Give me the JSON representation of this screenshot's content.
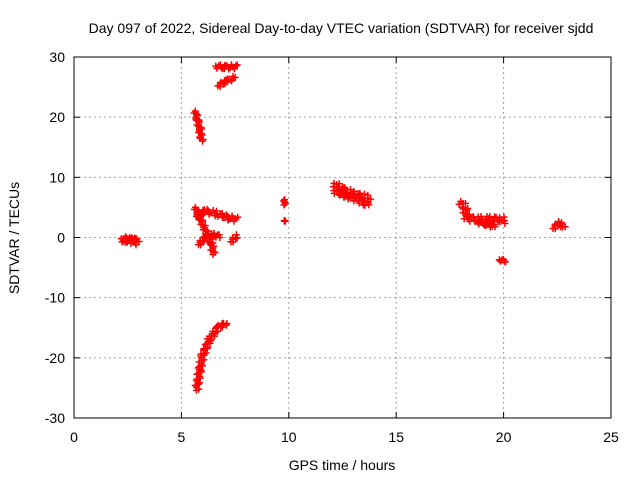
{
  "chart_data": {
    "type": "scatter",
    "title": "Day 097 of 2022, Sidereal Day-to-day VTEC variation (SDTVAR) for receiver sjdd",
    "xlabel": "GPS time / hours",
    "ylabel": "SDTVAR / TECUs",
    "xlim": [
      0,
      25
    ],
    "ylim": [
      -30,
      30
    ],
    "xticks": [
      0,
      5,
      10,
      15,
      20,
      25
    ],
    "yticks": [
      -30,
      -20,
      -10,
      0,
      10,
      20,
      30
    ],
    "grid": true,
    "marker": "plus",
    "color": "#ff0000",
    "segments": [
      {
        "points": [
          [
            2.2,
            -0.2
          ],
          [
            2.5,
            -0.4
          ],
          [
            2.8,
            -0.6
          ],
          [
            3.0,
            -0.9
          ]
        ],
        "width": 1.0
      },
      {
        "points": [
          [
            2.3,
            -0.6
          ],
          [
            2.6,
            -0.2
          ],
          [
            2.9,
            -0.5
          ]
        ],
        "width": 0.6
      },
      {
        "points": [
          [
            5.65,
            21.0
          ],
          [
            5.75,
            19.5
          ],
          [
            5.85,
            18.0
          ],
          [
            5.95,
            16.0
          ]
        ],
        "width": 0.6
      },
      {
        "points": [
          [
            5.65,
            5.0
          ],
          [
            5.9,
            3.0
          ],
          [
            6.2,
            0.5
          ],
          [
            6.4,
            -1.0
          ],
          [
            6.5,
            -2.8
          ]
        ],
        "width": 0.6
      },
      {
        "points": [
          [
            5.7,
            3.5
          ],
          [
            6.1,
            4.4
          ],
          [
            6.6,
            4.0
          ],
          [
            7.2,
            3.3
          ],
          [
            7.6,
            3.0
          ]
        ],
        "width": 0.8
      },
      {
        "points": [
          [
            5.8,
            -1.2
          ],
          [
            6.1,
            0.0
          ],
          [
            6.5,
            0.4
          ],
          [
            6.8,
            0.2
          ]
        ],
        "width": 0.6
      },
      {
        "points": [
          [
            7.3,
            -0.7
          ],
          [
            7.6,
            0.3
          ]
        ],
        "width": 0.6
      },
      {
        "points": [
          [
            5.7,
            -25.4
          ],
          [
            5.85,
            -22.0
          ],
          [
            6.0,
            -19.5
          ],
          [
            6.3,
            -17.0
          ],
          [
            6.7,
            -15.0
          ],
          [
            7.1,
            -14.2
          ]
        ],
        "width": 0.7
      },
      {
        "points": [
          [
            6.6,
            28.5
          ],
          [
            7.0,
            28.3
          ],
          [
            7.6,
            28.4
          ]
        ],
        "width": 0.7
      },
      {
        "points": [
          [
            6.7,
            25.2
          ],
          [
            7.1,
            26.0
          ],
          [
            7.5,
            26.6
          ]
        ],
        "width": 0.6
      },
      {
        "points": [
          [
            9.8,
            6.3
          ],
          [
            9.8,
            5.4
          ]
        ],
        "width": 0.3
      },
      {
        "points": [
          [
            9.8,
            2.7
          ],
          [
            9.8,
            2.8
          ]
        ],
        "width": 0.3
      },
      {
        "points": [
          [
            12.1,
            9.0
          ],
          [
            12.5,
            8.0
          ],
          [
            13.0,
            7.2
          ],
          [
            13.5,
            6.8
          ],
          [
            13.8,
            6.3
          ]
        ],
        "width": 1.0
      },
      {
        "points": [
          [
            12.1,
            7.8
          ],
          [
            12.6,
            7.0
          ],
          [
            13.2,
            6.3
          ],
          [
            13.7,
            5.3
          ]
        ],
        "width": 0.8
      },
      {
        "points": [
          [
            18.0,
            6.0
          ],
          [
            18.2,
            5.0
          ],
          [
            18.3,
            3.2
          ],
          [
            18.8,
            3.0
          ],
          [
            19.3,
            3.0
          ],
          [
            19.8,
            3.1
          ],
          [
            20.1,
            2.8
          ]
        ],
        "width": 1.0
      },
      {
        "points": [
          [
            18.8,
            2.6
          ],
          [
            19.2,
            2.2
          ],
          [
            19.6,
            1.8
          ]
        ],
        "width": 0.6
      },
      {
        "points": [
          [
            19.8,
            -3.7
          ],
          [
            20.1,
            -3.9
          ]
        ],
        "width": 0.4
      },
      {
        "points": [
          [
            22.3,
            1.5
          ],
          [
            22.6,
            2.5
          ],
          [
            22.8,
            1.6
          ]
        ],
        "width": 0.6
      }
    ]
  }
}
